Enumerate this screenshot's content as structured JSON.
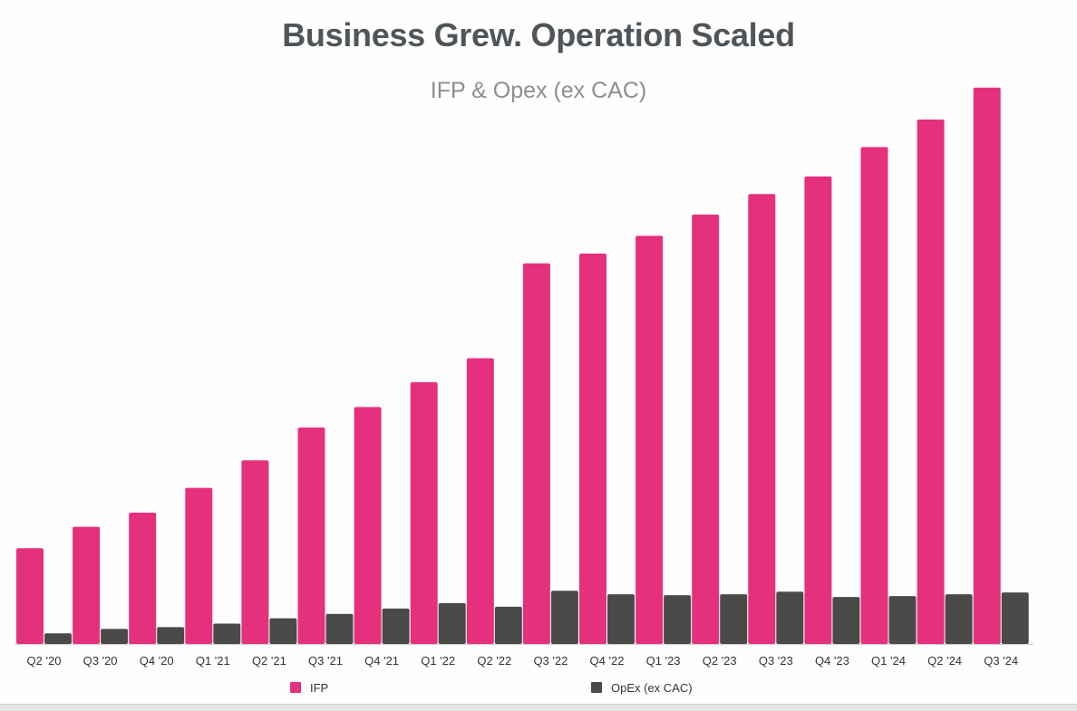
{
  "chart_data": {
    "type": "bar",
    "title": "Business Grew. Operation Scaled",
    "subtitle": "IFP & Opex (ex CAC)",
    "categories": [
      "Q2 '20",
      "Q3 '20",
      "Q4 '20",
      "Q1 '21",
      "Q2 '21",
      "Q3 '21",
      "Q4 '21",
      "Q1 '22",
      "Q2 '22",
      "Q3 '22",
      "Q4 '22",
      "Q1 '23",
      "Q2 '23",
      "Q3 '23",
      "Q4 '23",
      "Q1 '24",
      "Q2 '24",
      "Q3 '24"
    ],
    "series": [
      {
        "name": "IFP",
        "color": "#e5317d",
        "values": [
          108,
          132,
          148,
          176,
          207,
          244,
          267,
          295,
          322,
          429,
          440,
          460,
          484,
          507,
          527,
          560,
          591,
          627
        ]
      },
      {
        "name": "OpEx (ex CAC)",
        "color": "#4a4a48",
        "values": [
          12,
          17,
          19,
          23,
          29,
          34,
          40,
          46,
          42,
          60,
          56,
          55,
          56,
          59,
          53,
          54,
          56,
          58
        ]
      }
    ],
    "ylim": [
      0,
      640
    ],
    "grid": false,
    "legend": "bottom"
  }
}
